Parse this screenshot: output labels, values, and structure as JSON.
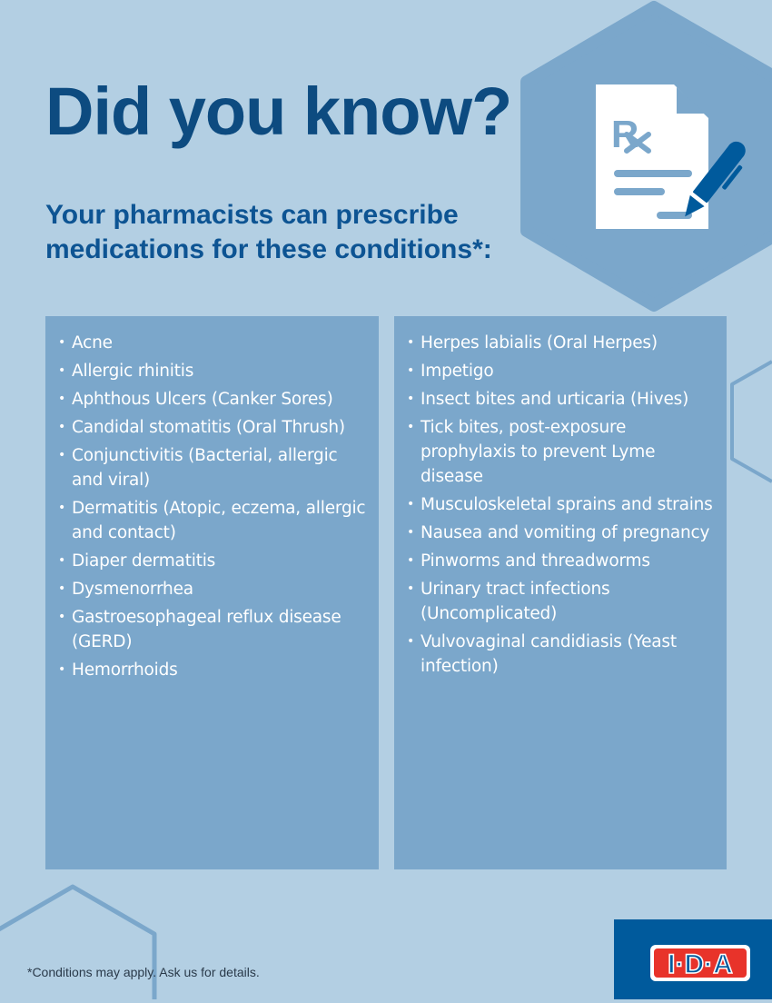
{
  "header": {
    "title": "Did you know?",
    "subtitle": "Your pharmacists can prescribe medications for these conditions*:"
  },
  "icon": "prescription-pen-icon",
  "colors": {
    "background": "#b3cfe3",
    "panel": "#7ba7cb",
    "title": "#0d4b80",
    "brand": "#005a9c",
    "logo_red": "#e8332a"
  },
  "conditions_left": [
    "Acne",
    "Allergic rhinitis",
    "Aphthous Ulcers (Canker Sores)",
    "Candidal stomatitis (Oral Thrush)",
    "Conjunctivitis (Bacterial, allergic and viral)",
    "Dermatitis (Atopic, eczema, allergic and contact)",
    "Diaper dermatitis",
    "Dysmenorrhea",
    "Gastroesophageal reflux disease (GERD)",
    "Hemorrhoids"
  ],
  "conditions_right": [
    "Herpes labialis (Oral Herpes)",
    "Impetigo",
    "Insect bites and urticaria (Hives)",
    "Tick bites, post-exposure prophylaxis to prevent Lyme disease",
    "Musculoskeletal sprains and strains",
    "Nausea and vomiting of pregnancy",
    "Pinworms and threadworms",
    "Urinary tract infections (Uncomplicated)",
    "Vulvovaginal candidiasis (Yeast infection)"
  ],
  "footer": {
    "note": "*Conditions may apply. Ask us for details.",
    "logo_text": "I·D·A"
  }
}
